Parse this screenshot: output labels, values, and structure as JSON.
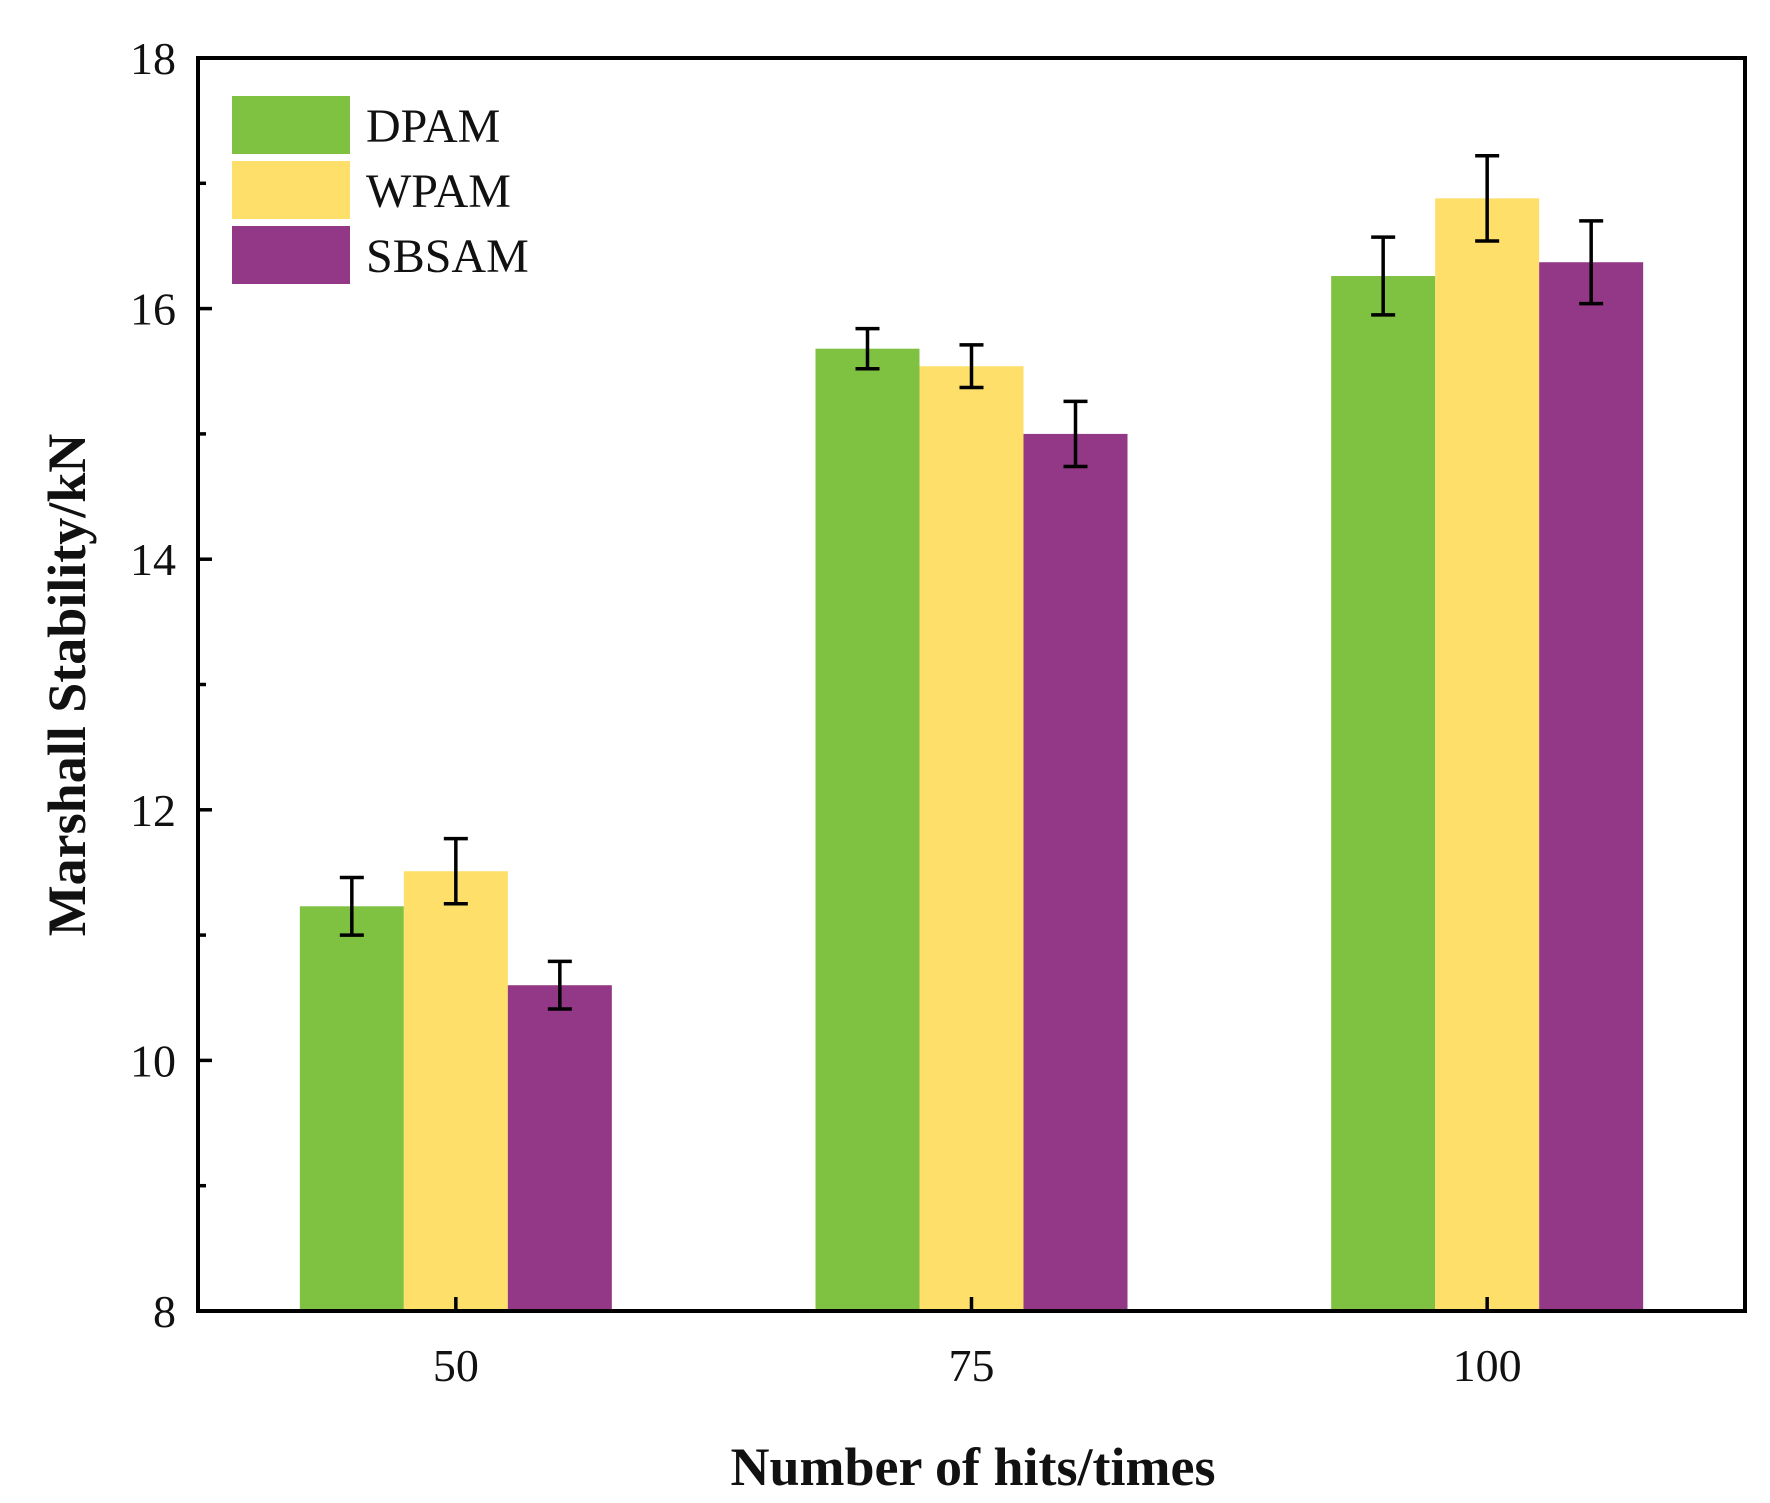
{
  "chart_data": {
    "type": "bar",
    "title": "",
    "xlabel": "Number of hits/times",
    "ylabel": "Marshall Stability/kN",
    "ylim": [
      8,
      18
    ],
    "yticks": [
      8,
      10,
      12,
      14,
      16,
      18
    ],
    "yticks_minor": [
      9,
      11,
      13,
      15,
      17
    ],
    "categories": [
      "50",
      "75",
      "100"
    ],
    "legend_position": "top-left",
    "series": [
      {
        "name": "DPAM",
        "color": "#7fc241",
        "values": [
          11.23,
          15.68,
          16.26
        ],
        "errors": [
          0.23,
          0.16,
          0.31
        ]
      },
      {
        "name": "WPAM",
        "color": "#fddf6a",
        "values": [
          11.51,
          15.54,
          16.88
        ],
        "errors": [
          0.26,
          0.17,
          0.34
        ]
      },
      {
        "name": "SBSAM",
        "color": "#933787",
        "values": [
          10.6,
          15.0,
          16.37
        ],
        "errors": [
          0.19,
          0.26,
          0.33
        ]
      }
    ]
  }
}
